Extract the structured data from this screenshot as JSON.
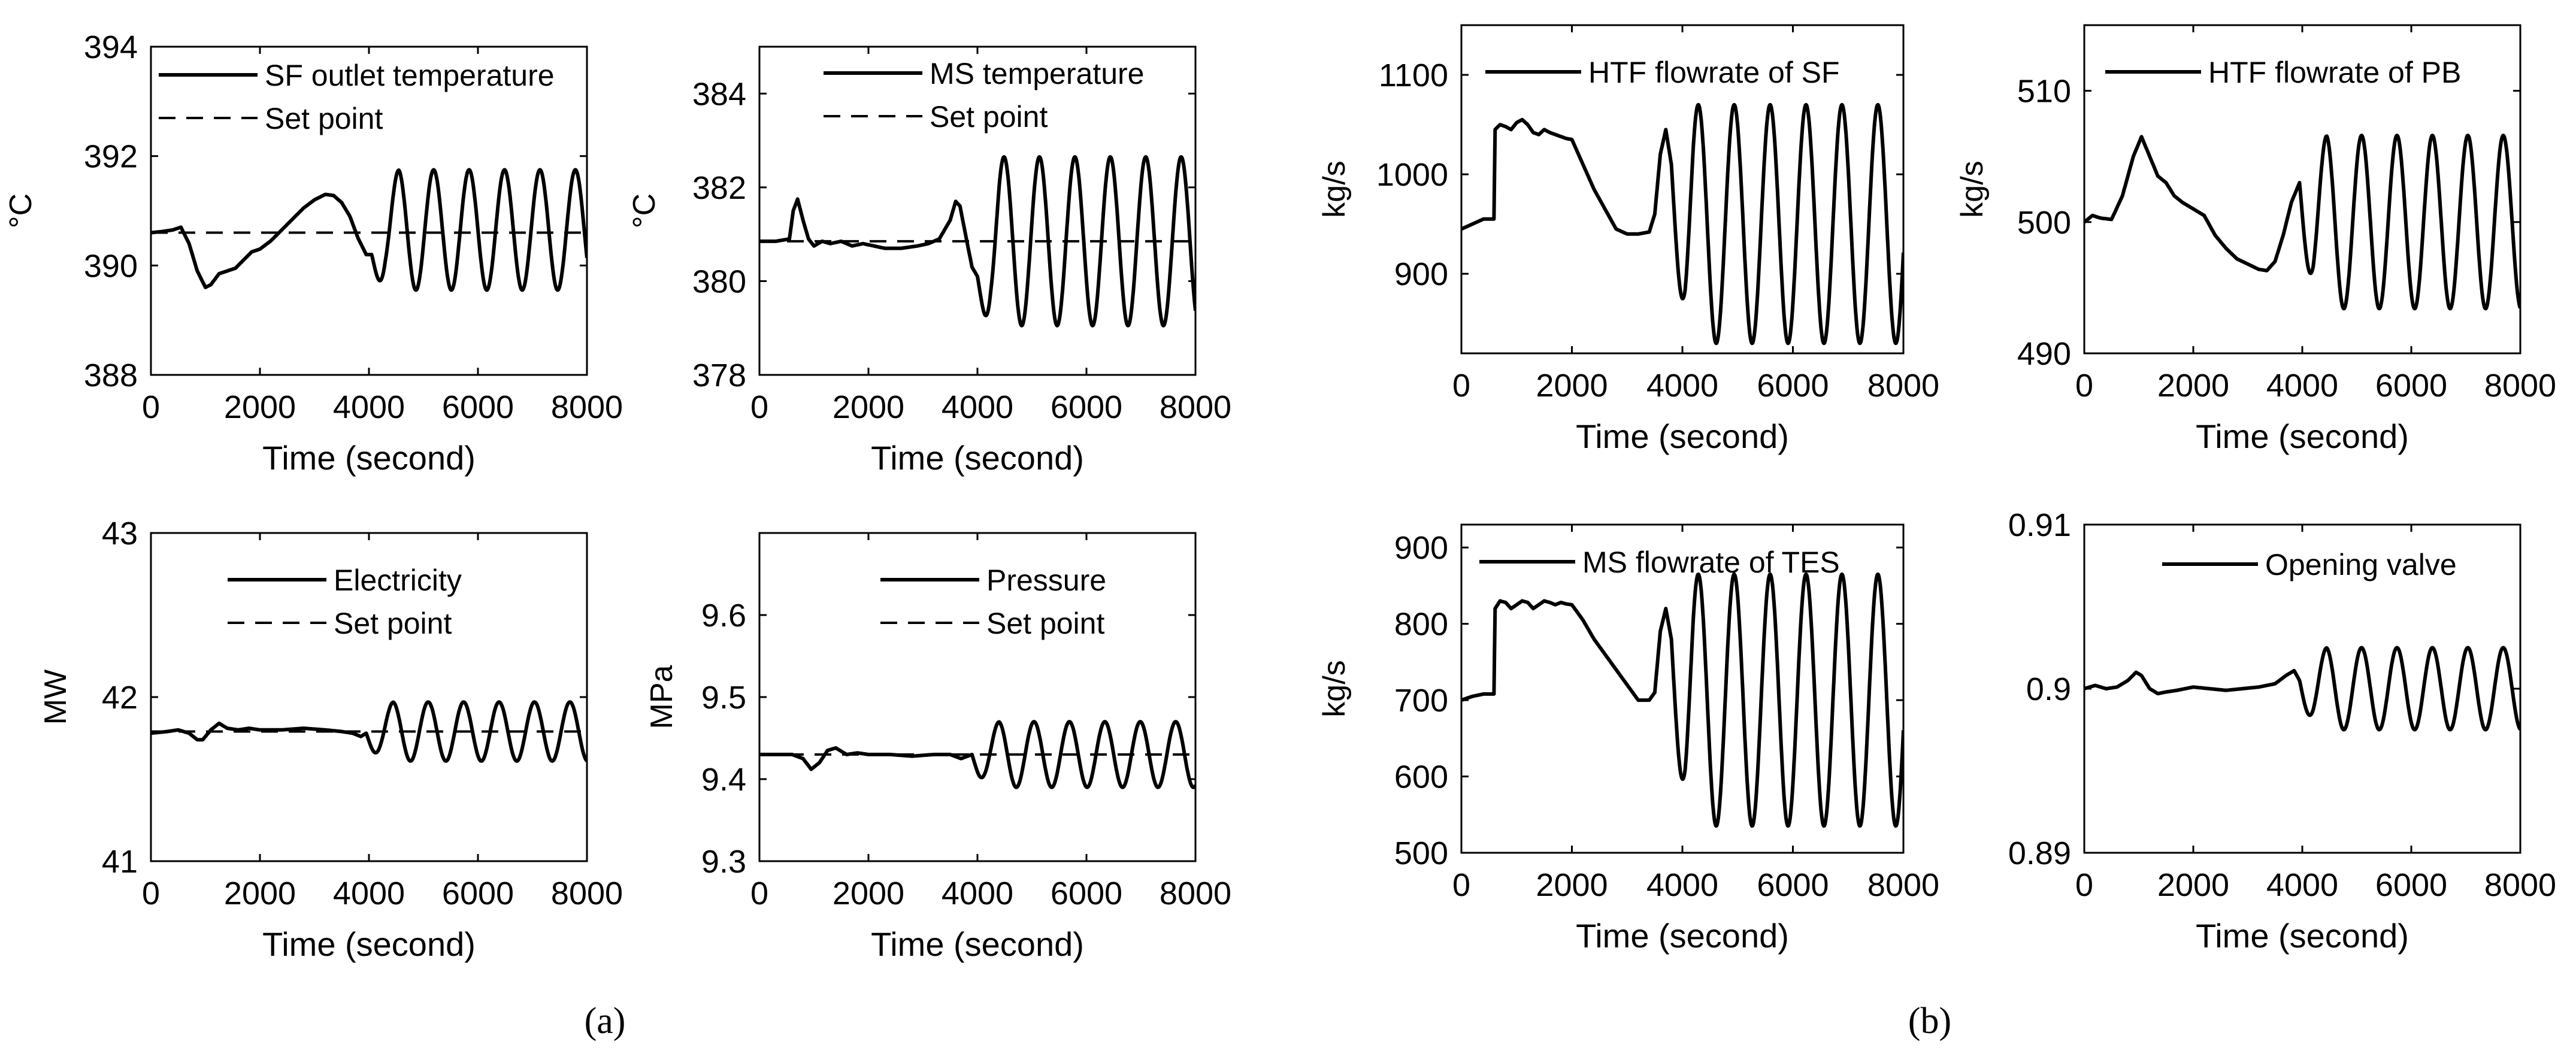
{
  "figure": {
    "label_a": "(a)",
    "label_b": "(b)",
    "line_color": "#000000",
    "background": "#ffffff"
  },
  "chart_data": [
    {
      "id": "sf-outlet-temp",
      "type": "line",
      "title": "",
      "xlabel": "Time (second)",
      "ylabel": "°C",
      "xlim": [
        0,
        8000
      ],
      "ylim": [
        388,
        394
      ],
      "xticks": [
        0,
        2000,
        4000,
        6000,
        8000
      ],
      "yticks": [
        388,
        390,
        392,
        394
      ],
      "ytick_labels": [
        "388",
        "390",
        "392",
        "394"
      ],
      "legend": "top-right",
      "series": [
        {
          "name": "SF outlet temperature",
          "style": "solid",
          "x": [
            0,
            200,
            400,
            550,
            700,
            850,
            1000,
            1100,
            1250,
            1400,
            1550,
            1700,
            1850,
            2000,
            2200,
            2400,
            2600,
            2800,
            3000,
            3200,
            3350,
            3500,
            3650,
            3800,
            3950,
            4050
          ],
          "y": [
            390.6,
            390.62,
            390.65,
            390.7,
            390.4,
            389.9,
            389.6,
            389.65,
            389.85,
            389.9,
            389.95,
            390.1,
            390.25,
            390.3,
            390.45,
            390.65,
            390.85,
            391.05,
            391.2,
            391.3,
            391.28,
            391.15,
            390.9,
            390.5,
            390.2,
            390.2
          ],
          "osc": {
            "start": 4050,
            "period": 650,
            "center": 390.65,
            "amplitude": 1.1,
            "ramp": 500
          }
        },
        {
          "name": "Set point",
          "style": "dashed",
          "x": [
            0,
            8000
          ],
          "y": [
            390.6,
            390.6
          ]
        }
      ]
    },
    {
      "id": "ms-temp",
      "type": "line",
      "title": "",
      "xlabel": "Time (second)",
      "ylabel": "°C",
      "xlim": [
        0,
        8000
      ],
      "ylim": [
        378,
        385
      ],
      "xticks": [
        0,
        2000,
        4000,
        6000,
        8000
      ],
      "yticks": [
        378,
        380,
        382,
        384
      ],
      "ytick_labels": [
        "378",
        "380",
        "382",
        "384"
      ],
      "legend": "top-right",
      "series": [
        {
          "name": "MS temperature",
          "style": "solid",
          "x": [
            0,
            300,
            550,
            620,
            700,
            800,
            900,
            1000,
            1150,
            1300,
            1500,
            1700,
            1900,
            2100,
            2300,
            2600,
            2900,
            3100,
            3300,
            3500,
            3600,
            3680,
            3780,
            3900,
            4000
          ],
          "y": [
            380.85,
            380.85,
            380.9,
            381.5,
            381.75,
            381.3,
            380.9,
            380.75,
            380.85,
            380.8,
            380.85,
            380.75,
            380.8,
            380.75,
            380.7,
            380.7,
            380.75,
            380.8,
            380.9,
            381.3,
            381.7,
            381.6,
            381.0,
            380.3,
            380.1
          ],
          "osc": {
            "start": 4000,
            "period": 650,
            "center": 380.85,
            "amplitude": 1.8,
            "ramp": 400
          }
        },
        {
          "name": "Set point",
          "style": "dashed",
          "x": [
            0,
            8000
          ],
          "y": [
            380.85,
            380.85
          ]
        }
      ]
    },
    {
      "id": "electricity",
      "type": "line",
      "title": "",
      "xlabel": "Time (second)",
      "ylabel": "MW",
      "xlim": [
        0,
        8000
      ],
      "ylim": [
        41,
        43
      ],
      "xticks": [
        0,
        2000,
        4000,
        6000,
        8000
      ],
      "yticks": [
        41,
        42,
        43
      ],
      "ytick_labels": [
        "41",
        "42",
        "43"
      ],
      "legend": "top-center",
      "series": [
        {
          "name": "Electricity",
          "style": "solid",
          "x": [
            0,
            300,
            500,
            700,
            850,
            950,
            1100,
            1250,
            1400,
            1600,
            1800,
            2000,
            2400,
            2800,
            3200,
            3500,
            3700,
            3850,
            3950
          ],
          "y": [
            41.78,
            41.79,
            41.8,
            41.78,
            41.74,
            41.74,
            41.8,
            41.84,
            41.81,
            41.8,
            41.81,
            41.8,
            41.8,
            41.81,
            41.8,
            41.79,
            41.78,
            41.76,
            41.78
          ],
          "osc": {
            "start": 3950,
            "period": 650,
            "center": 41.79,
            "amplitude": 0.18,
            "ramp": 500
          }
        },
        {
          "name": "Set point",
          "style": "dashed",
          "x": [
            0,
            8000
          ],
          "y": [
            41.79,
            41.79
          ]
        }
      ]
    },
    {
      "id": "pressure",
      "type": "line",
      "title": "",
      "xlabel": "Time (second)",
      "ylabel": "MPa",
      "xlim": [
        0,
        8000
      ],
      "ylim": [
        9.3,
        9.7
      ],
      "xticks": [
        0,
        2000,
        4000,
        6000,
        8000
      ],
      "yticks": [
        9.3,
        9.4,
        9.5,
        9.6
      ],
      "ytick_labels": [
        "9.3",
        "9.4",
        "9.5",
        "9.6"
      ],
      "legend": "top-right",
      "series": [
        {
          "name": "Pressure",
          "style": "solid",
          "x": [
            0,
            300,
            600,
            800,
            950,
            1100,
            1250,
            1400,
            1600,
            1800,
            2000,
            2400,
            2800,
            3200,
            3500,
            3700,
            3900
          ],
          "y": [
            9.43,
            9.43,
            9.43,
            9.425,
            9.412,
            9.42,
            9.435,
            9.438,
            9.43,
            9.432,
            9.43,
            9.43,
            9.428,
            9.43,
            9.43,
            9.425,
            9.43
          ],
          "osc": {
            "start": 3900,
            "period": 650,
            "center": 9.43,
            "amplitude": 0.04,
            "ramp": 500
          }
        },
        {
          "name": "Set point",
          "style": "dashed",
          "x": [
            0,
            8000
          ],
          "y": [
            9.43,
            9.43
          ]
        }
      ]
    },
    {
      "id": "htf-flowrate-sf",
      "type": "line",
      "title": "",
      "xlabel": "Time (second)",
      "ylabel": "kg/s",
      "xlim": [
        0,
        8000
      ],
      "ylim": [
        820,
        1150
      ],
      "xticks": [
        0,
        2000,
        4000,
        6000,
        8000
      ],
      "yticks": [
        900,
        1000,
        1100
      ],
      "ytick_labels": [
        "900",
        "1000",
        "1100"
      ],
      "legend": "top-right",
      "series": [
        {
          "name": "HTF flowrate of SF",
          "style": "solid",
          "x": [
            0,
            200,
            400,
            590,
            610,
            700,
            800,
            900,
            1000,
            1100,
            1200,
            1300,
            1400,
            1500,
            1600,
            1700,
            1800,
            1900,
            2000,
            2200,
            2400,
            2600,
            2800,
            3000,
            3200,
            3400,
            3500,
            3600,
            3700,
            3800
          ],
          "y": [
            945,
            950,
            955,
            955,
            1045,
            1050,
            1048,
            1045,
            1052,
            1055,
            1050,
            1042,
            1040,
            1045,
            1042,
            1040,
            1038,
            1036,
            1035,
            1010,
            985,
            965,
            945,
            940,
            940,
            942,
            960,
            1020,
            1045,
            1010
          ],
          "osc": {
            "start": 3800,
            "period": 650,
            "center": 950,
            "amplitude": 120,
            "ramp": 400
          }
        }
      ]
    },
    {
      "id": "htf-flowrate-pb",
      "type": "line",
      "title": "",
      "xlabel": "Time (second)",
      "ylabel": "kg/s",
      "xlim": [
        0,
        8000
      ],
      "ylim": [
        490,
        515
      ],
      "xticks": [
        0,
        2000,
        4000,
        6000,
        8000
      ],
      "yticks": [
        490,
        500,
        510
      ],
      "ytick_labels": [
        "490",
        "500",
        "510"
      ],
      "legend": "top-right",
      "series": [
        {
          "name": "HTF flowrate of PB",
          "style": "solid",
          "x": [
            0,
            150,
            300,
            500,
            700,
            900,
            1050,
            1200,
            1350,
            1500,
            1650,
            1800,
            2000,
            2200,
            2400,
            2600,
            2800,
            3000,
            3200,
            3350,
            3500,
            3650,
            3800,
            3950
          ],
          "y": [
            500,
            500.5,
            500.3,
            500.2,
            502,
            505,
            506.5,
            505,
            503.5,
            503,
            502,
            501.5,
            501,
            500.5,
            499,
            498,
            497.2,
            496.8,
            496.4,
            496.3,
            497,
            499,
            501.5,
            503
          ],
          "osc": {
            "start": 3950,
            "period": 650,
            "center": 500,
            "amplitude": 6.6,
            "ramp": 500
          }
        }
      ]
    },
    {
      "id": "ms-flowrate-tes",
      "type": "line",
      "title": "",
      "xlabel": "Time (second)",
      "ylabel": "kg/s",
      "xlim": [
        0,
        8000
      ],
      "ylim": [
        500,
        930
      ],
      "xticks": [
        0,
        2000,
        4000,
        6000,
        8000
      ],
      "yticks": [
        500,
        600,
        700,
        800,
        900
      ],
      "ytick_labels": [
        "500",
        "600",
        "700",
        "800",
        "900"
      ],
      "legend": "top-right",
      "series": [
        {
          "name": "MS flowrate of TES",
          "style": "solid",
          "x": [
            0,
            200,
            400,
            590,
            610,
            700,
            800,
            900,
            1000,
            1100,
            1200,
            1300,
            1400,
            1500,
            1600,
            1700,
            1800,
            1900,
            2000,
            2200,
            2400,
            2600,
            2800,
            3000,
            3200,
            3400,
            3500,
            3600,
            3700,
            3800
          ],
          "y": [
            700,
            705,
            708,
            708,
            820,
            830,
            828,
            820,
            825,
            830,
            828,
            820,
            825,
            830,
            828,
            825,
            828,
            826,
            825,
            805,
            780,
            760,
            740,
            720,
            700,
            700,
            710,
            790,
            820,
            780
          ],
          "osc": {
            "start": 3800,
            "period": 650,
            "center": 700,
            "amplitude": 165,
            "ramp": 400
          }
        }
      ]
    },
    {
      "id": "opening-valve",
      "type": "line",
      "title": "",
      "xlabel": "Time (second)",
      "ylabel": "",
      "xlim": [
        0,
        8000
      ],
      "ylim": [
        0.89,
        0.91
      ],
      "xticks": [
        0,
        2000,
        4000,
        6000,
        8000
      ],
      "yticks": [
        0.89,
        0.9,
        0.91
      ],
      "ytick_labels": [
        "0.89",
        "0.9",
        "0.91"
      ],
      "legend": "top-right",
      "series": [
        {
          "name": "Opening valve",
          "style": "solid",
          "x": [
            0,
            200,
            400,
            600,
            800,
            950,
            1050,
            1200,
            1350,
            1500,
            1700,
            2000,
            2300,
            2600,
            2900,
            3200,
            3500,
            3700,
            3850,
            3950
          ],
          "y": [
            0.9,
            0.9002,
            0.9,
            0.9001,
            0.9005,
            0.901,
            0.9008,
            0.9,
            0.8997,
            0.8998,
            0.8999,
            0.9001,
            0.9,
            0.8999,
            0.9,
            0.9001,
            0.9003,
            0.9008,
            0.9011,
            0.9005
          ],
          "osc": {
            "start": 3950,
            "period": 650,
            "center": 0.9,
            "amplitude": 0.0025,
            "ramp": 500
          }
        }
      ]
    }
  ]
}
